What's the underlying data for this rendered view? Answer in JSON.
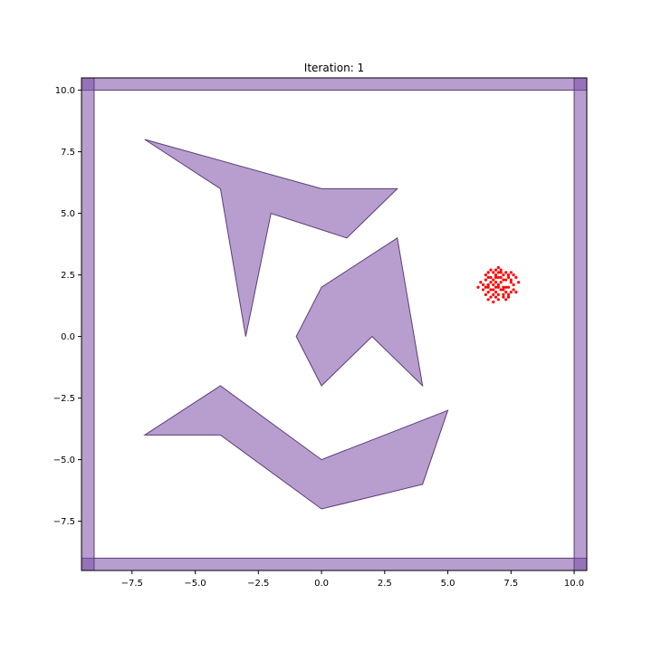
{
  "chart_data": {
    "type": "scatter",
    "title": "Iteration: 1",
    "xlabel": "",
    "ylabel": "",
    "xlim": [
      -9.5,
      10.5
    ],
    "ylim": [
      -9.5,
      10.5
    ],
    "grid": false,
    "x_ticks": [
      -7.5,
      -5.0,
      -2.5,
      0.0,
      2.5,
      5.0,
      7.5,
      10.0
    ],
    "x_tick_labels": [
      "−7.5",
      "−5.0",
      "−2.5",
      "0.0",
      "2.5",
      "5.0",
      "7.5",
      "10.0"
    ],
    "y_ticks": [
      -7.5,
      -5.0,
      -2.5,
      0.0,
      2.5,
      5.0,
      7.5,
      10.0
    ],
    "y_tick_labels": [
      "−7.5",
      "−5.0",
      "−2.5",
      "0.0",
      "2.5",
      "5.0",
      "7.5",
      "10.0"
    ],
    "colors": {
      "obstacle_fill": "#7b4fa6",
      "obstacle_edge": "#5a3d78",
      "points": "#ff0000"
    },
    "walls": [
      [
        [
          -9.5,
          10.0
        ],
        [
          10.5,
          10.0
        ],
        [
          10.5,
          10.5
        ],
        [
          -9.5,
          10.5
        ]
      ],
      [
        [
          -9.5,
          -9.5
        ],
        [
          10.5,
          -9.5
        ],
        [
          10.5,
          -9.0
        ],
        [
          -9.5,
          -9.0
        ]
      ],
      [
        [
          -9.5,
          -9.5
        ],
        [
          -9.0,
          -9.5
        ],
        [
          -9.0,
          10.5
        ],
        [
          -9.5,
          10.5
        ]
      ],
      [
        [
          10.0,
          -9.5
        ],
        [
          10.5,
          -9.5
        ],
        [
          10.5,
          10.5
        ],
        [
          10.0,
          10.5
        ]
      ]
    ],
    "obstacles": [
      [
        [
          -7,
          8
        ],
        [
          0,
          6
        ],
        [
          3,
          6
        ],
        [
          1,
          4
        ],
        [
          -2,
          5
        ],
        [
          -3,
          0
        ],
        [
          -4,
          6
        ]
      ],
      [
        [
          0,
          2
        ],
        [
          3,
          4
        ],
        [
          4,
          -2
        ],
        [
          2,
          0
        ],
        [
          0,
          -2
        ],
        [
          -1,
          0
        ]
      ],
      [
        [
          -7,
          -4
        ],
        [
          -4,
          -2
        ],
        [
          0,
          -5
        ],
        [
          5,
          -3
        ],
        [
          4,
          -6
        ],
        [
          0,
          -7
        ],
        [
          -4,
          -4
        ]
      ]
    ],
    "points": [
      [
        7.0,
        2.1
      ],
      [
        7.2,
        2.3
      ],
      [
        6.8,
        1.9
      ],
      [
        7.3,
        1.8
      ],
      [
        6.9,
        2.5
      ],
      [
        7.1,
        2.7
      ],
      [
        6.6,
        2.0
      ],
      [
        7.5,
        2.2
      ],
      [
        6.7,
        1.6
      ],
      [
        7.4,
        2.5
      ],
      [
        6.9,
        2.2
      ],
      [
        7.0,
        1.7
      ],
      [
        7.6,
        1.9
      ],
      [
        6.5,
        2.3
      ],
      [
        7.2,
        1.6
      ],
      [
        6.8,
        2.6
      ],
      [
        7.3,
        2.0
      ],
      [
        6.4,
        1.9
      ],
      [
        7.7,
        2.4
      ],
      [
        6.6,
        1.5
      ],
      [
        7.1,
        2.4
      ],
      [
        6.9,
        1.8
      ],
      [
        7.4,
        1.6
      ],
      [
        6.7,
        2.2
      ],
      [
        7.0,
        2.8
      ],
      [
        6.3,
        2.2
      ],
      [
        7.5,
        2.6
      ],
      [
        6.8,
        1.4
      ],
      [
        7.2,
        2.0
      ],
      [
        6.6,
        2.4
      ],
      [
        7.3,
        2.3
      ],
      [
        6.9,
        2.0
      ],
      [
        7.6,
        2.1
      ],
      [
        6.5,
        1.7
      ],
      [
        7.1,
        1.9
      ],
      [
        6.8,
        2.3
      ],
      [
        7.4,
        2.0
      ],
      [
        6.7,
        1.9
      ],
      [
        7.0,
        2.4
      ],
      [
        6.2,
        2.0
      ],
      [
        7.8,
        2.2
      ],
      [
        6.9,
        2.7
      ],
      [
        7.2,
        1.7
      ],
      [
        6.6,
        2.1
      ],
      [
        7.3,
        2.6
      ],
      [
        7.0,
        1.5
      ],
      [
        6.5,
        2.5
      ],
      [
        7.5,
        1.8
      ],
      [
        6.8,
        2.1
      ],
      [
        7.1,
        2.2
      ],
      [
        6.7,
        2.7
      ],
      [
        7.4,
        2.4
      ],
      [
        6.9,
        1.6
      ],
      [
        7.2,
        2.5
      ],
      [
        6.6,
        1.8
      ],
      [
        7.6,
        2.5
      ],
      [
        6.4,
        2.1
      ],
      [
        7.0,
        2.0
      ],
      [
        7.3,
        1.5
      ],
      [
        6.8,
        1.7
      ],
      [
        7.1,
        2.6
      ],
      [
        6.7,
        2.4
      ],
      [
        7.5,
        2.3
      ],
      [
        6.9,
        2.4
      ],
      [
        7.2,
        1.9
      ],
      [
        6.6,
        2.6
      ],
      [
        7.7,
        1.8
      ],
      [
        6.5,
        2.0
      ],
      [
        7.0,
        2.6
      ],
      [
        7.4,
        1.7
      ]
    ]
  }
}
